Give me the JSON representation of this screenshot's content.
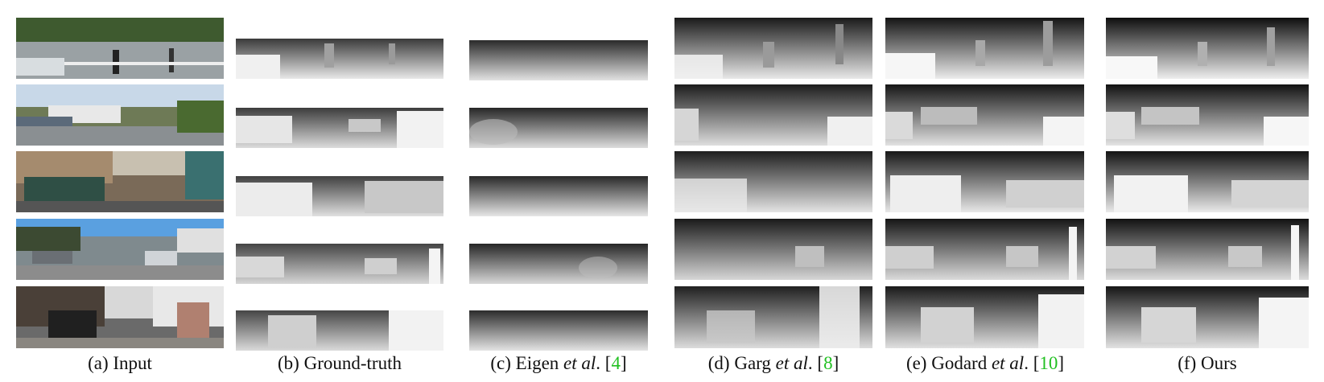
{
  "figure": {
    "columns": [
      {
        "id": "input",
        "letter": "(a)",
        "label": "Input",
        "em": "",
        "post": "",
        "ref": "",
        "close": "",
        "kind": "rgb"
      },
      {
        "id": "gt",
        "letter": "(b)",
        "label": "Ground-truth",
        "em": "",
        "post": "",
        "ref": "",
        "close": "",
        "kind": "sparse"
      },
      {
        "id": "eigen",
        "letter": "(c)",
        "label": "Eigen",
        "em": "et al",
        "post": ". [",
        "ref": "4",
        "close": "]",
        "kind": "blur"
      },
      {
        "id": "garg",
        "letter": "(d)",
        "label": "Garg",
        "em": "et al",
        "post": ". [",
        "ref": "8",
        "close": "]",
        "kind": "soft"
      },
      {
        "id": "godard",
        "letter": "(e)",
        "label": "Godard",
        "em": "et al",
        "post": ". [",
        "ref": "10",
        "close": "]",
        "kind": "sharp"
      },
      {
        "id": "ours",
        "letter": "(f)",
        "label": "Ours",
        "em": "",
        "post": "",
        "ref": "",
        "close": "",
        "kind": "clean"
      }
    ],
    "row_count": 5,
    "colors": {
      "reference": "#22c022",
      "caption": "#111111"
    }
  }
}
